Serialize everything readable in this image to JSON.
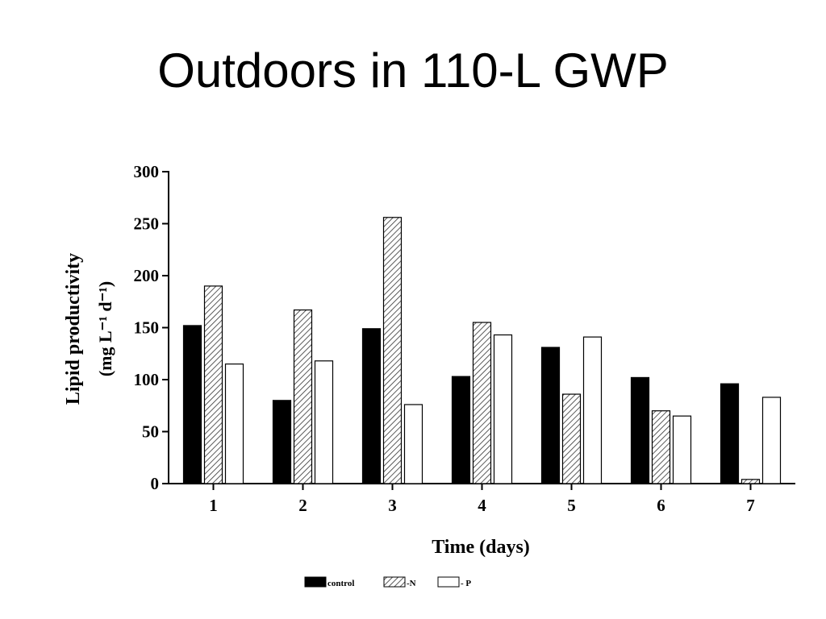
{
  "slide": {
    "title": "Outdoors in 110-L GWP"
  },
  "chart_data": {
    "type": "bar",
    "categories": [
      "1",
      "2",
      "3",
      "4",
      "5",
      "6",
      "7"
    ],
    "series": [
      {
        "name": "control",
        "values": [
          152,
          80,
          149,
          103,
          131,
          102,
          96
        ]
      },
      {
        "name": "-N",
        "values": [
          190,
          167,
          256,
          155,
          86,
          70,
          4
        ]
      },
      {
        "name": "- P",
        "values": [
          115,
          118,
          76,
          143,
          141,
          65,
          83
        ]
      }
    ],
    "title": "",
    "xlabel": "Time (days)",
    "ylabel": "Lipid productivity",
    "ylabel_units": "(mg L⁻¹ d⁻¹)",
    "ylim": [
      0,
      300
    ],
    "yticks": [
      0,
      50,
      100,
      150,
      200,
      250,
      300
    ],
    "grid": false,
    "legend_placement": "bottom",
    "series_styles": [
      {
        "fill": "#000000",
        "pattern": "solid"
      },
      {
        "fill": "#ffffff",
        "pattern": "diagonal-hatch"
      },
      {
        "fill": "#ffffff",
        "pattern": "empty"
      }
    ]
  }
}
